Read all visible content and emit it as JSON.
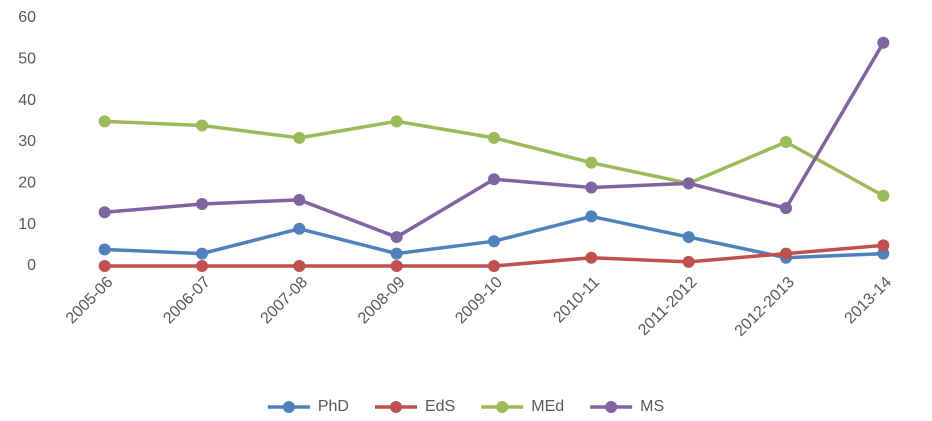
{
  "chart_data": {
    "type": "line",
    "categories": [
      "2005-06",
      "2006-07",
      "2007-08",
      "2008-09",
      "2009-10",
      "2010-11",
      "2011-2012",
      "2012-2013",
      "2013-14"
    ],
    "series": [
      {
        "name": "PhD",
        "color": "#4f81bd",
        "values": [
          4,
          3,
          9,
          3,
          6,
          12,
          7,
          2,
          3
        ]
      },
      {
        "name": "EdS",
        "color": "#c0504d",
        "values": [
          0,
          0,
          0,
          0,
          0,
          2,
          1,
          3,
          5
        ]
      },
      {
        "name": "MEd",
        "color": "#9bbb59",
        "values": [
          35,
          34,
          31,
          35,
          31,
          25,
          20,
          30,
          17
        ]
      },
      {
        "name": "MS",
        "color": "#8064a2",
        "values": [
          13,
          15,
          16,
          7,
          21,
          19,
          20,
          14,
          54
        ]
      }
    ],
    "ylim": [
      0,
      60
    ],
    "yticks": [
      0,
      10,
      20,
      30,
      40,
      50,
      60
    ],
    "grid": false,
    "legend": "bottom"
  }
}
